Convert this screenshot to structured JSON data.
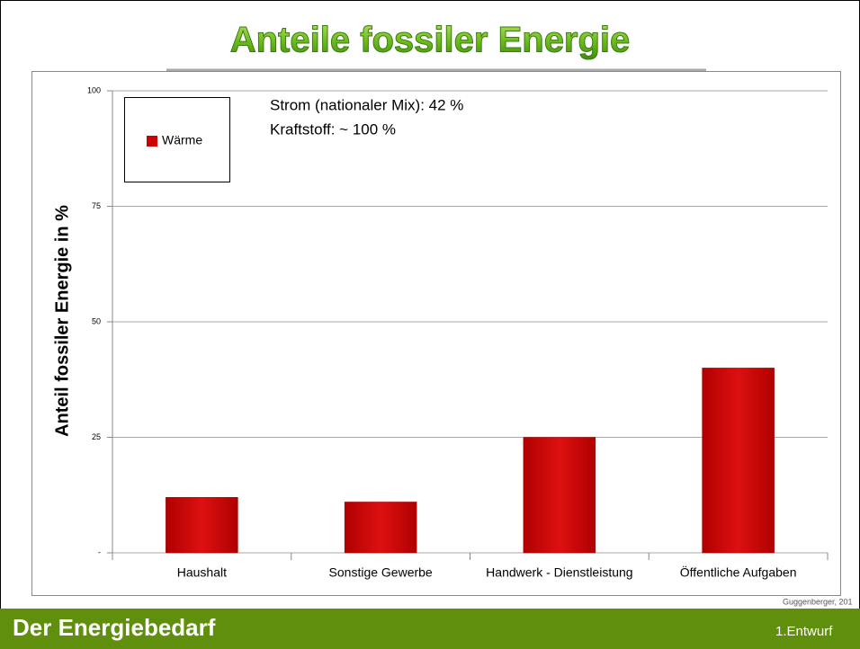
{
  "chart_data": {
    "type": "bar",
    "title": "Anteile fossiler Energie",
    "y_label": "Anteil fossiler Energie in %",
    "categories": [
      "Haushalt",
      "Sonstige Gewerbe",
      "Handwerk - Dienstleistung",
      "Öffentliche Aufgaben"
    ],
    "series": [
      {
        "name": "Wärme",
        "color": "#cc0000",
        "values": [
          12,
          11,
          25,
          40
        ]
      }
    ],
    "ylim": [
      0,
      100
    ],
    "yticks": [
      {
        "value": 0,
        "label": "-"
      },
      25,
      50,
      75,
      100
    ],
    "grid": true,
    "annotations": [
      "Strom (nationaler Mix): 42 %",
      "Kraftstoff: ~ 100 %"
    ]
  },
  "footer": {
    "title": "Der Energiebedarf",
    "label": "1.Entwurf",
    "source": "Guggenberger, 201"
  }
}
